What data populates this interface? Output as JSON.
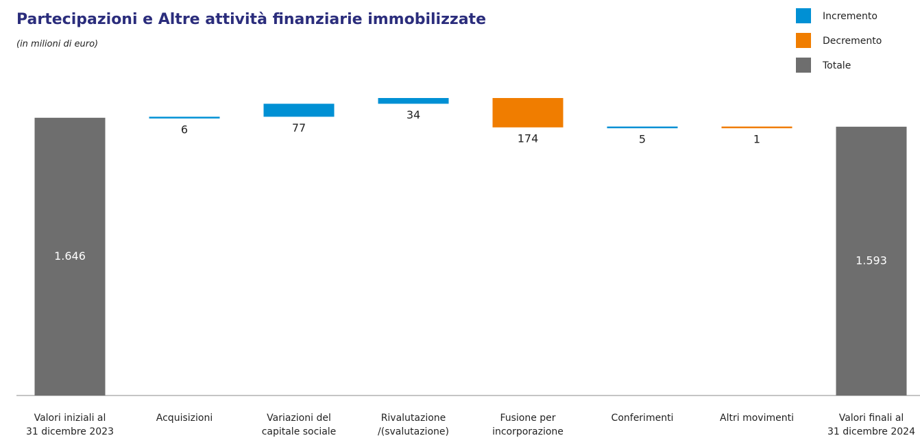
{
  "chart_data": {
    "type": "waterfall",
    "title": "Partecipazioni e Altre attività finanziarie immobilizzate",
    "subtitle": "(in milioni di euro)",
    "categories": [
      "Valori iniziali al\n31 dicembre 2023",
      "Acquisizioni",
      "Variazioni del\ncapitale sociale",
      "Rivalutazione\n/(svalutazione)",
      "Fusione per\nincorporazione",
      "Conferimenti",
      "Altri movimenti",
      "Valori finali al\n31 dicembre 2024"
    ],
    "series": [
      {
        "name": "Incremento",
        "color": "#0090d4",
        "values": [
          null,
          6,
          77,
          34,
          null,
          5,
          null,
          null
        ]
      },
      {
        "name": "Decremento",
        "color": "#f07d00",
        "values": [
          null,
          null,
          null,
          null,
          174,
          null,
          1,
          null
        ]
      },
      {
        "name": "Totale",
        "color": "#6e6e6e",
        "values": [
          1646,
          null,
          null,
          null,
          null,
          null,
          null,
          1593
        ],
        "value_labels": [
          "1.646",
          null,
          null,
          null,
          null,
          null,
          null,
          "1.593"
        ]
      }
    ],
    "legend": "top-right"
  }
}
